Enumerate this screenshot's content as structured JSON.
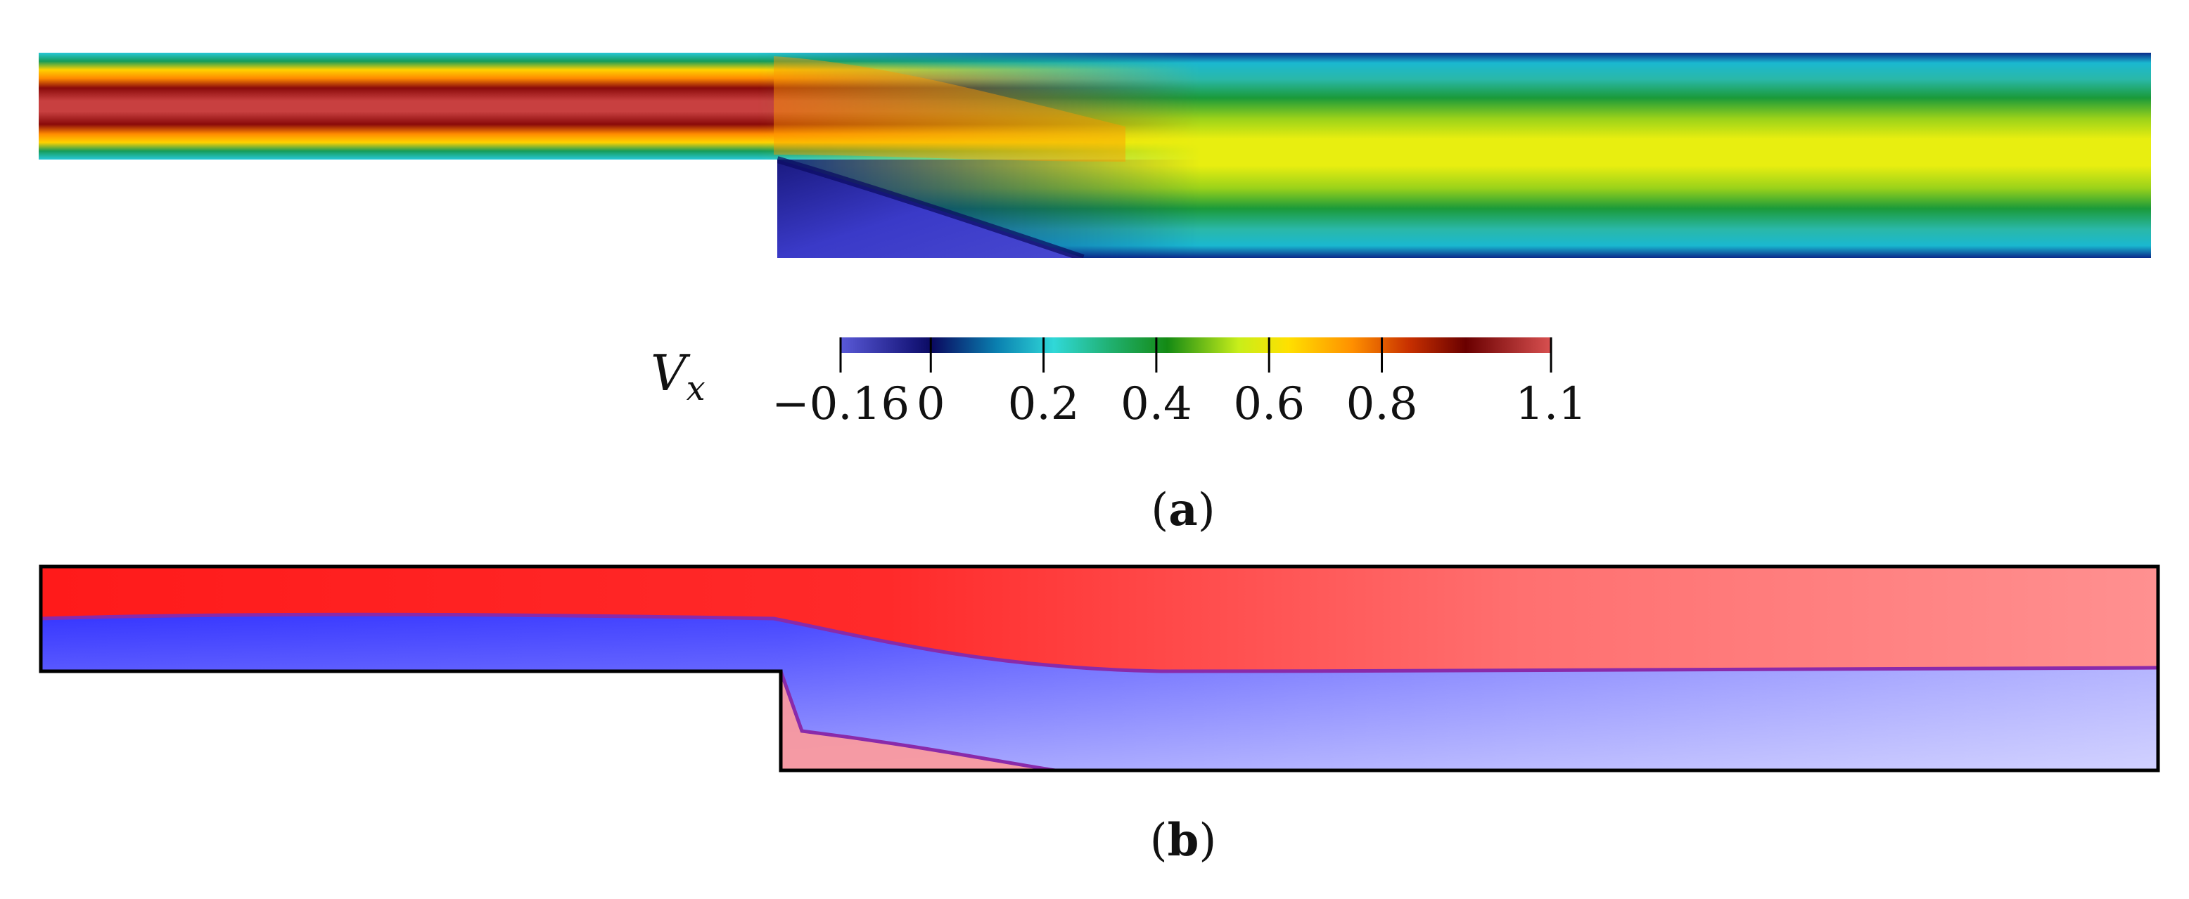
{
  "figure": {
    "panel_a_label": "a",
    "panel_b_label": "b",
    "colorbar": {
      "variable_symbol": "V",
      "variable_subscript": "x",
      "min": -0.16,
      "max": 1.1,
      "ticks": [
        "−0.16",
        "0",
        "0.2",
        "0.4",
        "0.6",
        "0.8",
        "1.1"
      ],
      "tick_values": [
        -0.16,
        0,
        0.2,
        0.4,
        0.6,
        0.8,
        1.1
      ],
      "colormap": [
        "#5959d9",
        "#0a0a6e",
        "#00a0c0",
        "#28d8d8",
        "#18a058",
        "#168a16",
        "#d6f01a",
        "#ffe100",
        "#ff9500",
        "#c83200",
        "#6e0000",
        "#d24c4c"
      ]
    },
    "panel_b_colors": {
      "upper": "#ff1e1e",
      "lower": "#2020ff",
      "border": "#000000"
    }
  }
}
